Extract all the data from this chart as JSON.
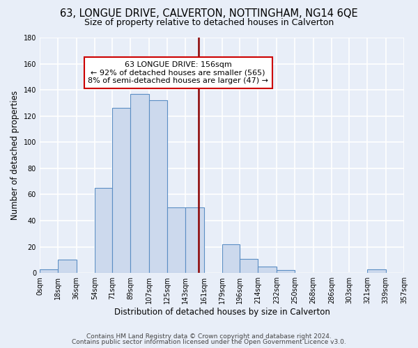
{
  "title": "63, LONGUE DRIVE, CALVERTON, NOTTINGHAM, NG14 6QE",
  "subtitle": "Size of property relative to detached houses in Calverton",
  "xlabel": "Distribution of detached houses by size in Calverton",
  "ylabel": "Number of detached properties",
  "footer_lines": [
    "Contains HM Land Registry data © Crown copyright and database right 2024.",
    "Contains public sector information licensed under the Open Government Licence v3.0."
  ],
  "bin_edges": [
    0,
    18,
    36,
    54,
    71,
    89,
    107,
    125,
    143,
    161,
    179,
    196,
    214,
    232,
    250,
    268,
    286,
    303,
    321,
    339,
    357
  ],
  "bin_labels": [
    "0sqm",
    "18sqm",
    "36sqm",
    "54sqm",
    "71sqm",
    "89sqm",
    "107sqm",
    "125sqm",
    "143sqm",
    "161sqm",
    "179sqm",
    "196sqm",
    "214sqm",
    "232sqm",
    "250sqm",
    "268sqm",
    "286sqm",
    "303sqm",
    "321sqm",
    "339sqm",
    "357sqm"
  ],
  "bar_heights": [
    3,
    10,
    0,
    65,
    126,
    137,
    132,
    50,
    50,
    0,
    22,
    11,
    5,
    2,
    0,
    0,
    0,
    0,
    3,
    0
  ],
  "bar_color": "#ccd9ed",
  "bar_edgecolor": "#5b8ec4",
  "ylim": [
    0,
    180
  ],
  "yticks": [
    0,
    20,
    40,
    60,
    80,
    100,
    120,
    140,
    160,
    180
  ],
  "property_line_x": 156,
  "property_line_color": "#8b0000",
  "annotation_title": "63 LONGUE DRIVE: 156sqm",
  "annotation_line1": "← 92% of detached houses are smaller (565)",
  "annotation_line2": "8% of semi-detached houses are larger (47) →",
  "background_color": "#e8eef8",
  "plot_bg_color": "#e8eef8",
  "grid_color": "#ffffff",
  "title_fontsize": 10.5,
  "subtitle_fontsize": 9,
  "axis_label_fontsize": 8.5,
  "tick_fontsize": 7,
  "footer_fontsize": 6.5,
  "annotation_fontsize": 8
}
